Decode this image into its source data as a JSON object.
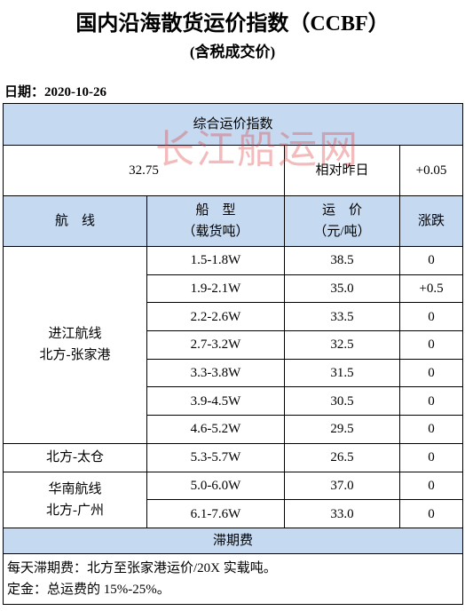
{
  "header": {
    "title": "国内沿海散货运价指数（CCBF）",
    "subtitle": "(含税成交价)",
    "date": "日期：2020-10-26"
  },
  "watermark": "长江船运网",
  "table": {
    "section_title": "综合运价指数",
    "index_value": "32.75",
    "change_label": "相对昨日",
    "change_value": "+0.05",
    "columns": [
      [
        "航　线"
      ],
      [
        "船　型",
        "（载货吨）"
      ],
      [
        "运　价",
        "（元/吨）"
      ],
      [
        "涨跌"
      ]
    ],
    "groups": [
      {
        "route": [
          "进江航线",
          "北方-张家港"
        ],
        "rows": [
          [
            "1.5-1.8W",
            "38.5",
            "0"
          ],
          [
            "1.9-2.1W",
            "35.0",
            "+0.5"
          ],
          [
            "2.2-2.6W",
            "33.5",
            "0"
          ],
          [
            "2.7-3.2W",
            "32.5",
            "0"
          ],
          [
            "3.3-3.8W",
            "31.5",
            "0"
          ],
          [
            "3.9-4.5W",
            "30.5",
            "0"
          ],
          [
            "4.6-5.2W",
            "29.5",
            "0"
          ]
        ]
      },
      {
        "route": [
          "北方-太仓"
        ],
        "rows": [
          [
            "5.3-5.7W",
            "26.5",
            "0"
          ]
        ]
      },
      {
        "route": [
          "华南航线",
          "北方-广州"
        ],
        "rows": [
          [
            "5.0-6.0W",
            "37.0",
            "0"
          ],
          [
            "6.1-7.6W",
            "33.0",
            "0"
          ]
        ]
      }
    ],
    "footer_title": "滞期费",
    "notes": [
      "每天滞期费：北方至张家港运价/20X 实载吨。",
      "定金：总运费的 15%-25%。"
    ]
  }
}
